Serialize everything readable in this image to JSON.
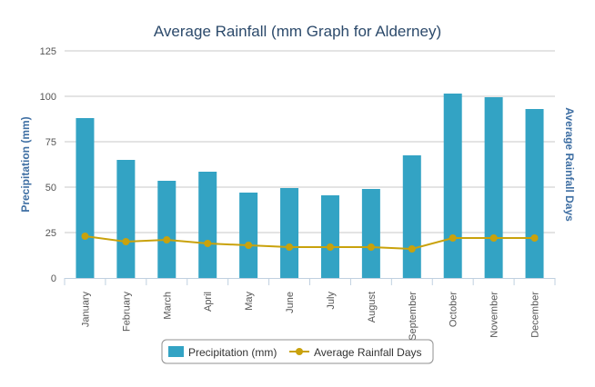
{
  "chart_data": {
    "type": "bar",
    "title": "Average Rainfall (mm Graph for Alderney)",
    "categories": [
      "January",
      "February",
      "March",
      "April",
      "May",
      "June",
      "July",
      "August",
      "September",
      "October",
      "November",
      "December"
    ],
    "series": [
      {
        "name": "Precipitation (mm)",
        "type": "bar",
        "color": "#33a3c4",
        "axis": "left",
        "values": [
          88,
          65,
          53.5,
          58.5,
          47,
          49.5,
          45.5,
          49,
          67.5,
          101.5,
          99.5,
          93
        ]
      },
      {
        "name": "Average Rainfall Days",
        "type": "line",
        "color": "#c9a20c",
        "axis": "right",
        "values": [
          23,
          20,
          21,
          19,
          18,
          17,
          17,
          17,
          16,
          22,
          22,
          22
        ]
      }
    ],
    "ylabel": "Precipitation (mm)",
    "y2label": "Average Rainfall Days",
    "ylim": [
      0,
      125
    ],
    "yticks": [
      "0",
      "25",
      "50",
      "75",
      "100",
      "125"
    ],
    "grid": true,
    "legend": "bottom"
  }
}
